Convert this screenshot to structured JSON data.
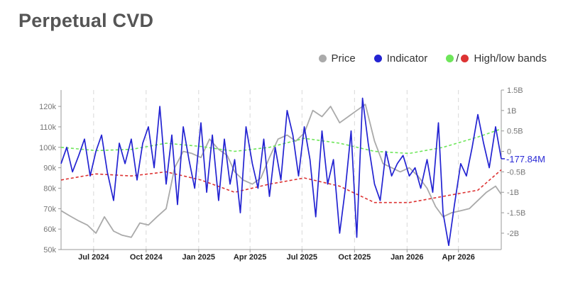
{
  "title": "Perpetual CVD",
  "legend": {
    "price": "Price",
    "indicator": "Indicator",
    "bands_slash": "/",
    "bands": "High/low bands"
  },
  "colors": {
    "price": "#aaaaaa",
    "indicator": "#2323d2",
    "band_high": "#6ee65a",
    "band_low": "#dd3333"
  },
  "chart_data": {
    "type": "line",
    "title": "Perpetual CVD",
    "x_ticks": [
      "Jul 2024",
      "Oct 2024",
      "Jan 2025",
      "Apr 2025",
      "Jul 2025",
      "Oct 2025",
      "Jan 2026",
      "Apr 2026"
    ],
    "x_tick_dates": [
      "2024-07-01",
      "2024-10-01",
      "2025-01-01",
      "2025-04-01",
      "2025-07-01",
      "2025-10-01",
      "2026-01-01",
      "2026-04-01"
    ],
    "x_range": [
      "2024-05-05",
      "2026-06-15"
    ],
    "y_left": {
      "label": "",
      "ticks": [
        "120k",
        "110k",
        "100k",
        "90k",
        "80k",
        "70k",
        "60k",
        "50k"
      ],
      "tick_values": [
        120000,
        110000,
        100000,
        90000,
        80000,
        70000,
        60000,
        50000
      ],
      "range": [
        50000,
        128000
      ]
    },
    "y_right": {
      "label": "",
      "ticks": [
        "1.5B",
        "1B",
        "0.5B",
        "0",
        "-0.5B",
        "-1B",
        "-1.5B",
        "-2B"
      ],
      "tick_values": [
        1.5,
        1.0,
        0.5,
        0,
        -0.5,
        -1.0,
        -1.5,
        -2.0
      ],
      "range": [
        -2.4,
        1.5
      ],
      "unit": "B"
    },
    "last_value_label": "-177.84M",
    "grid": "vertical dashed at x ticks",
    "series": [
      {
        "name": "Price",
        "axis": "left",
        "x": [
          "2024-05-05",
          "2024-05-20",
          "2024-06-05",
          "2024-06-20",
          "2024-07-05",
          "2024-07-20",
          "2024-08-05",
          "2024-08-20",
          "2024-09-05",
          "2024-09-20",
          "2024-10-05",
          "2024-10-20",
          "2024-11-05",
          "2024-11-20",
          "2024-12-05",
          "2024-12-20",
          "2025-01-05",
          "2025-01-20",
          "2025-02-05",
          "2025-02-20",
          "2025-03-05",
          "2025-03-20",
          "2025-04-05",
          "2025-04-20",
          "2025-05-05",
          "2025-05-20",
          "2025-06-05",
          "2025-06-20",
          "2025-07-05",
          "2025-07-20",
          "2025-08-05",
          "2025-08-20",
          "2025-09-05",
          "2025-09-20",
          "2025-10-05",
          "2025-10-20",
          "2025-11-05",
          "2025-11-20",
          "2025-12-05",
          "2025-12-20",
          "2026-01-05",
          "2026-01-20",
          "2026-02-05",
          "2026-02-20",
          "2026-03-05",
          "2026-03-20",
          "2026-04-05",
          "2026-04-20",
          "2026-05-05",
          "2026-05-20",
          "2026-06-05",
          "2026-06-15"
        ],
        "values": [
          69000,
          66500,
          64000,
          62000,
          58000,
          66000,
          59000,
          57000,
          56000,
          63000,
          62000,
          66000,
          70000,
          90000,
          98000,
          97000,
          95000,
          104000,
          99000,
          96000,
          88000,
          84000,
          82000,
          85000,
          95000,
          104000,
          106000,
          103000,
          107000,
          118000,
          115000,
          120000,
          112000,
          115000,
          118000,
          121000,
          103000,
          92000,
          90000,
          88000,
          90000,
          86000,
          80000,
          71000,
          66000,
          68000,
          69000,
          70000,
          74000,
          78000,
          81000,
          77000
        ]
      },
      {
        "name": "Indicator",
        "axis": "right",
        "x": [
          "2024-05-05",
          "2024-05-15",
          "2024-05-25",
          "2024-06-05",
          "2024-06-15",
          "2024-06-25",
          "2024-07-05",
          "2024-07-15",
          "2024-07-25",
          "2024-08-05",
          "2024-08-15",
          "2024-08-25",
          "2024-09-05",
          "2024-09-15",
          "2024-09-25",
          "2024-10-05",
          "2024-10-15",
          "2024-10-25",
          "2024-11-05",
          "2024-11-15",
          "2024-11-25",
          "2024-12-05",
          "2024-12-15",
          "2024-12-25",
          "2025-01-05",
          "2025-01-15",
          "2025-01-25",
          "2025-02-05",
          "2025-02-15",
          "2025-02-25",
          "2025-03-05",
          "2025-03-15",
          "2025-03-25",
          "2025-04-05",
          "2025-04-15",
          "2025-04-25",
          "2025-05-05",
          "2025-05-15",
          "2025-05-25",
          "2025-06-05",
          "2025-06-15",
          "2025-06-25",
          "2025-07-05",
          "2025-07-15",
          "2025-07-25",
          "2025-08-05",
          "2025-08-15",
          "2025-08-25",
          "2025-09-05",
          "2025-09-15",
          "2025-09-25",
          "2025-10-05",
          "2025-10-15",
          "2025-10-25",
          "2025-11-05",
          "2025-11-15",
          "2025-11-25",
          "2025-12-05",
          "2025-12-15",
          "2025-12-25",
          "2026-01-05",
          "2026-01-15",
          "2026-01-25",
          "2026-02-05",
          "2026-02-15",
          "2026-02-25",
          "2026-03-05",
          "2026-03-15",
          "2026-03-25",
          "2026-04-05",
          "2026-04-15",
          "2026-04-25",
          "2026-05-05",
          "2026-05-15",
          "2026-05-25",
          "2026-06-05",
          "2026-06-15"
        ],
        "values": [
          -0.3,
          0.1,
          -0.5,
          -0.1,
          0.3,
          -0.6,
          0.0,
          0.4,
          -0.5,
          -1.2,
          0.2,
          -0.3,
          0.3,
          -0.7,
          0.2,
          0.6,
          -0.4,
          1.1,
          -0.8,
          0.4,
          -1.3,
          0.6,
          -0.2,
          -0.9,
          0.7,
          -1.0,
          0.4,
          -1.2,
          0.3,
          -0.8,
          -0.2,
          -1.5,
          0.6,
          -0.3,
          -0.9,
          0.3,
          -1.1,
          0.1,
          -0.7,
          1.0,
          0.4,
          -0.6,
          0.6,
          -0.2,
          -1.6,
          0.5,
          -0.8,
          -0.2,
          -2.0,
          -0.9,
          0.5,
          -2.1,
          1.3,
          0.2,
          -0.8,
          -1.2,
          0.0,
          -0.6,
          -0.3,
          -0.1,
          -0.6,
          -0.4,
          -0.9,
          -0.2,
          -1.0,
          0.7,
          -1.5,
          -2.3,
          -1.3,
          -0.3,
          -0.6,
          0.1,
          0.9,
          0.2,
          -0.4,
          0.6,
          -0.18
        ]
      },
      {
        "name": "High band",
        "axis": "right",
        "x": [
          "2024-05-05",
          "2024-07-05",
          "2024-09-05",
          "2024-11-05",
          "2025-01-05",
          "2025-03-05",
          "2025-05-05",
          "2025-07-05",
          "2025-09-05",
          "2025-11-05",
          "2026-01-05",
          "2026-03-05",
          "2026-05-05",
          "2026-06-15"
        ],
        "values": [
          0.1,
          0.02,
          0.05,
          0.2,
          0.12,
          0.0,
          0.1,
          0.32,
          0.2,
          0.0,
          -0.05,
          0.1,
          0.35,
          0.55
        ]
      },
      {
        "name": "Low band",
        "axis": "right",
        "x": [
          "2024-05-05",
          "2024-07-05",
          "2024-09-05",
          "2024-11-05",
          "2025-01-05",
          "2025-03-05",
          "2025-05-05",
          "2025-07-05",
          "2025-09-05",
          "2025-11-05",
          "2026-01-05",
          "2026-03-05",
          "2026-05-05",
          "2026-06-15"
        ],
        "values": [
          -0.7,
          -0.55,
          -0.6,
          -0.5,
          -0.7,
          -1.0,
          -0.8,
          -0.65,
          -0.85,
          -1.25,
          -1.25,
          -1.1,
          -0.95,
          -0.45
        ]
      }
    ]
  }
}
